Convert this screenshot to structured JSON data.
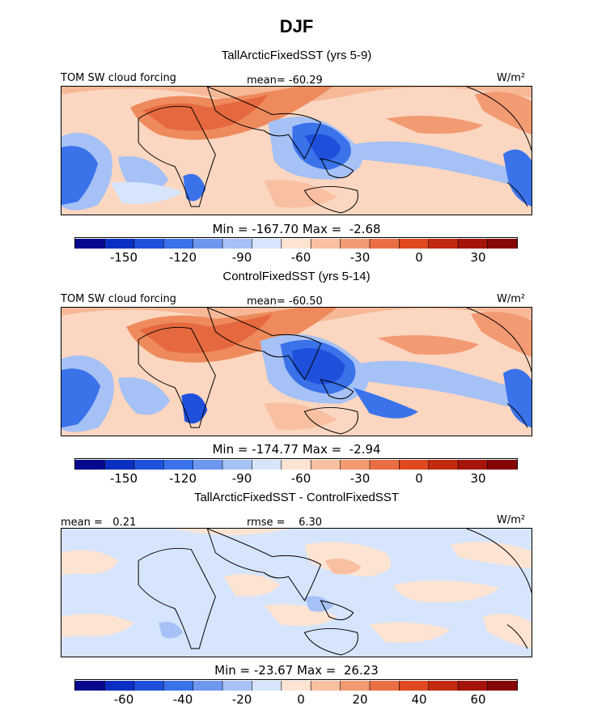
{
  "title": "DJF",
  "unit_label": "W/m²",
  "colors": [
    "#08088c",
    "#0a2ec2",
    "#1f50dc",
    "#3a72ea",
    "#6e97f0",
    "#a6c1f5",
    "#d6e5fb",
    "#fde3d2",
    "#f8c0a0",
    "#f29a72",
    "#ea6e44",
    "#e04820",
    "#c22a10",
    "#a4140a",
    "#840606"
  ],
  "panels": [
    {
      "title": "TallArcticFixedSST (yrs 5-9)",
      "variable": "TOM SW cloud forcing",
      "mean_label": "mean= -60.29",
      "minmax_label": "Min = -167.70 Max =  -2.68",
      "ticks": [
        "-150",
        "-120",
        "-90",
        "-60",
        "-30",
        "0",
        "30"
      ]
    },
    {
      "title": "ControlFixedSST (yrs 5-14)",
      "variable": "TOM SW cloud forcing",
      "mean_label": "mean= -60.50",
      "minmax_label": "Min = -174.77 Max =  -2.94",
      "ticks": [
        "-150",
        "-120",
        "-90",
        "-60",
        "-30",
        "0",
        "30"
      ]
    },
    {
      "title": "TallArcticFixedSST - ControlFixedSST",
      "mean_label": "mean =   0.21",
      "rmse_label": "rmse =    6.30",
      "minmax_label": "Min = -23.67 Max =  26.23",
      "ticks": [
        "-60",
        "-40",
        "-20",
        "0",
        "20",
        "40",
        "60"
      ]
    }
  ],
  "chart_data": [
    {
      "type": "heatmap",
      "title": "TallArcticFixedSST (yrs 5-9)",
      "variable": "TOM SW cloud forcing",
      "units": "W/m2",
      "mean": -60.29,
      "min": -167.7,
      "max": -2.68,
      "colorbar_range": [
        -180,
        45
      ],
      "colorbar_ticks": [
        -150,
        -120,
        -90,
        -60,
        -30,
        0,
        30
      ]
    },
    {
      "type": "heatmap",
      "title": "ControlFixedSST (yrs 5-14)",
      "variable": "TOM SW cloud forcing",
      "units": "W/m2",
      "mean": -60.5,
      "min": -174.77,
      "max": -2.94,
      "colorbar_range": [
        -180,
        45
      ],
      "colorbar_ticks": [
        -150,
        -120,
        -90,
        -60,
        -30,
        0,
        30
      ]
    },
    {
      "type": "heatmap",
      "title": "TallArcticFixedSST - ControlFixedSST",
      "units": "W/m2",
      "mean": 0.21,
      "rmse": 6.3,
      "min": -23.67,
      "max": 26.23,
      "colorbar_range": [
        -75,
        75
      ],
      "colorbar_ticks": [
        -60,
        -40,
        -20,
        0,
        20,
        40,
        60
      ]
    }
  ]
}
